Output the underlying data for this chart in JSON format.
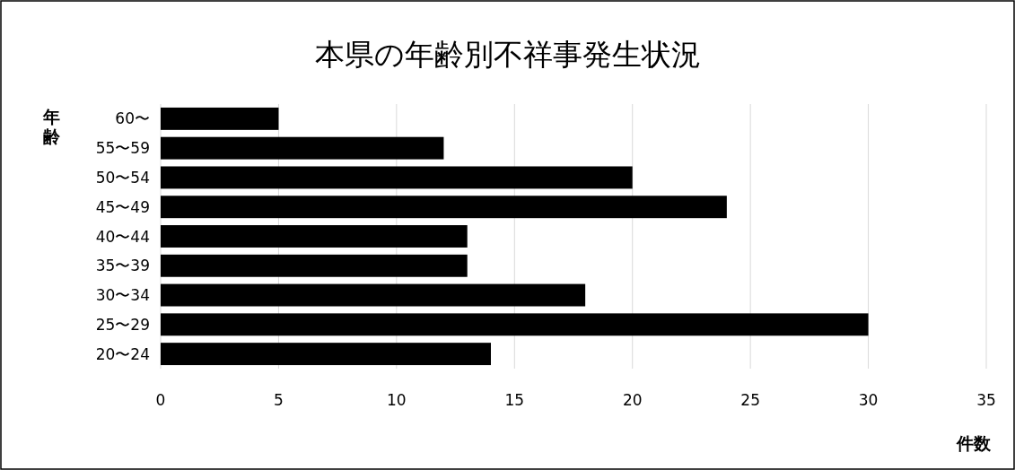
{
  "chart_data": {
    "type": "bar",
    "orientation": "horizontal",
    "title": "本県の年齢別不祥事発生状況",
    "xlabel": "件数",
    "ylabel": "年齢",
    "categories": [
      "60〜",
      "55〜59",
      "50〜54",
      "45〜49",
      "40〜44",
      "35〜39",
      "30〜34",
      "25〜29",
      "20〜24"
    ],
    "values": [
      5,
      12,
      20,
      24,
      13,
      13,
      18,
      30,
      14
    ],
    "color": "#000000",
    "xlim": [
      0,
      35
    ],
    "xticks": [
      0,
      5,
      10,
      15,
      20,
      25,
      30,
      35
    ],
    "grid": "x"
  }
}
